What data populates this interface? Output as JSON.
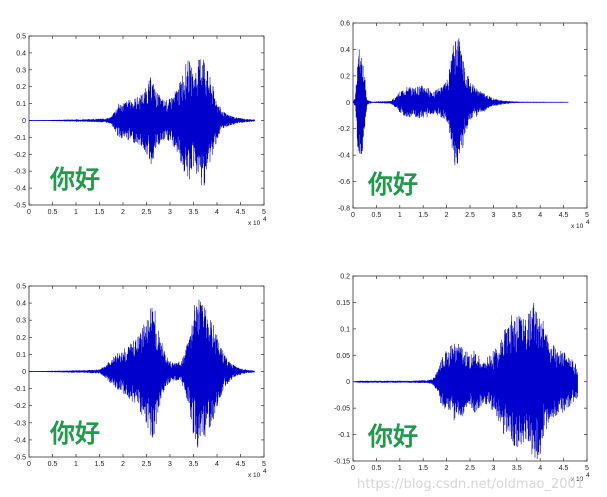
{
  "chart_data": [
    {
      "type": "line",
      "series": [
        {
          "color": "#0000cc",
          "envelope": [
            [
              0,
              0
            ],
            [
              2000,
              0.002
            ],
            [
              4000,
              0.003
            ],
            [
              6000,
              0.004
            ],
            [
              8000,
              0.006
            ],
            [
              10000,
              0.007
            ],
            [
              12000,
              0.008
            ],
            [
              14000,
              0.01
            ],
            [
              16000,
              0.012
            ],
            [
              17500,
              0.02
            ],
            [
              18000,
              0.05
            ],
            [
              19000,
              0.1
            ],
            [
              20000,
              0.11
            ],
            [
              21000,
              0.12
            ],
            [
              22000,
              0.13
            ],
            [
              23000,
              0.14
            ],
            [
              24000,
              0.16
            ],
            [
              25000,
              0.2
            ],
            [
              26000,
              0.27
            ],
            [
              27000,
              0.18
            ],
            [
              28000,
              0.14
            ],
            [
              29000,
              0.12
            ],
            [
              30000,
              0.13
            ],
            [
              31000,
              0.17
            ],
            [
              32000,
              0.22
            ],
            [
              33000,
              0.32
            ],
            [
              34000,
              0.37
            ],
            [
              35000,
              0.28
            ],
            [
              36000,
              0.35
            ],
            [
              36500,
              0.4
            ],
            [
              37000,
              0.42
            ],
            [
              37500,
              0.36
            ],
            [
              38000,
              0.3
            ],
            [
              39000,
              0.22
            ],
            [
              40000,
              0.12
            ],
            [
              41000,
              0.06
            ],
            [
              42000,
              0.04
            ],
            [
              43000,
              0.03
            ],
            [
              44000,
              0.02
            ],
            [
              45000,
              0.015
            ],
            [
              46000,
              0.01
            ],
            [
              47000,
              0.008
            ],
            [
              48000,
              0.006
            ]
          ]
        }
      ],
      "xlim": [
        0,
        50000
      ],
      "ylim": [
        -0.5,
        0.5
      ],
      "xticks": [
        "0",
        "0.5",
        "1",
        "1.5",
        "2",
        "2.5",
        "3",
        "3.5",
        "4",
        "4.5",
        "5"
      ],
      "yticks": [
        "0.5",
        "0.4",
        "0.3",
        "0.2",
        "0.1",
        "0",
        "-0.1",
        "-0.2",
        "-0.3",
        "-0.4",
        "-0.5"
      ],
      "x_exponent": "x 10",
      "x_exponent_power": "4",
      "annotation": "你好"
    },
    {
      "type": "line",
      "series": [
        {
          "color": "#0000cc",
          "envelope": [
            [
              0,
              0
            ],
            [
              500,
              0.04
            ],
            [
              1000,
              0.4
            ],
            [
              1500,
              0.42
            ],
            [
              2000,
              0.38
            ],
            [
              2500,
              0.2
            ],
            [
              3000,
              0.02
            ],
            [
              4000,
              0.005
            ],
            [
              6000,
              0.008
            ],
            [
              8000,
              0.01
            ],
            [
              9000,
              0.04
            ],
            [
              10000,
              0.08
            ],
            [
              11000,
              0.11
            ],
            [
              12000,
              0.12
            ],
            [
              13000,
              0.11
            ],
            [
              14000,
              0.12
            ],
            [
              15000,
              0.13
            ],
            [
              16000,
              0.11
            ],
            [
              17000,
              0.09
            ],
            [
              18000,
              0.1
            ],
            [
              19000,
              0.12
            ],
            [
              20000,
              0.16
            ],
            [
              21000,
              0.33
            ],
            [
              21500,
              0.45
            ],
            [
              22000,
              0.52
            ],
            [
              22500,
              0.52
            ],
            [
              23000,
              0.46
            ],
            [
              23500,
              0.35
            ],
            [
              24000,
              0.25
            ],
            [
              25000,
              0.17
            ],
            [
              26000,
              0.12
            ],
            [
              27000,
              0.09
            ],
            [
              28000,
              0.07
            ],
            [
              29000,
              0.05
            ],
            [
              30000,
              0.03
            ],
            [
              32000,
              0.015
            ],
            [
              34000,
              0.008
            ],
            [
              36000,
              0.004
            ],
            [
              40000,
              0.003
            ],
            [
              46000,
              0.002
            ]
          ]
        }
      ],
      "xlim": [
        0,
        50000
      ],
      "ylim": [
        -0.8,
        0.6
      ],
      "xticks": [
        "0",
        "0.5",
        "1",
        "1.5",
        "2",
        "2.5",
        "3",
        "3.5",
        "4",
        "4.5",
        "5"
      ],
      "yticks": [
        "0.6",
        "0.4",
        "0.2",
        "0",
        "-0.2",
        "-0.4",
        "-0.6",
        "-0.8"
      ],
      "x_exponent": "x 10",
      "x_exponent_power": "4",
      "annotation": "你好"
    },
    {
      "type": "line",
      "series": [
        {
          "color": "#0000cc",
          "envelope": [
            [
              0,
              0
            ],
            [
              4000,
              0.004
            ],
            [
              8000,
              0.006
            ],
            [
              12000,
              0.008
            ],
            [
              15000,
              0.012
            ],
            [
              16000,
              0.03
            ],
            [
              17000,
              0.06
            ],
            [
              18000,
              0.09
            ],
            [
              19000,
              0.11
            ],
            [
              20000,
              0.13
            ],
            [
              21000,
              0.15
            ],
            [
              22000,
              0.18
            ],
            [
              23000,
              0.21
            ],
            [
              24000,
              0.26
            ],
            [
              25000,
              0.32
            ],
            [
              26000,
              0.38
            ],
            [
              26500,
              0.4
            ],
            [
              27000,
              0.33
            ],
            [
              28000,
              0.2
            ],
            [
              29000,
              0.1
            ],
            [
              30000,
              0.06
            ],
            [
              31000,
              0.05
            ],
            [
              32000,
              0.06
            ],
            [
              33000,
              0.1
            ],
            [
              34000,
              0.2
            ],
            [
              35000,
              0.38
            ],
            [
              36000,
              0.47
            ],
            [
              36500,
              0.46
            ],
            [
              37000,
              0.4
            ],
            [
              38000,
              0.36
            ],
            [
              39000,
              0.3
            ],
            [
              40000,
              0.22
            ],
            [
              41000,
              0.13
            ],
            [
              42000,
              0.08
            ],
            [
              43000,
              0.05
            ],
            [
              44000,
              0.03
            ],
            [
              45000,
              0.02
            ],
            [
              46000,
              0.012
            ],
            [
              47000,
              0.008
            ],
            [
              48000,
              0.005
            ]
          ]
        }
      ],
      "xlim": [
        0,
        50000
      ],
      "ylim": [
        -0.5,
        0.5
      ],
      "xticks": [
        "0",
        "0.5",
        "1",
        "1.5",
        "2",
        "2.5",
        "3",
        "3.5",
        "4",
        "4.5",
        "5"
      ],
      "yticks": [
        "0.5",
        "0.4",
        "0.3",
        "0.2",
        "0.1",
        "0",
        "-0.1",
        "-0.2",
        "-0.3",
        "-0.4",
        "-0.5"
      ],
      "x_exponent": "x 10",
      "x_exponent_power": "4",
      "annotation": "你好"
    },
    {
      "type": "line",
      "series": [
        {
          "color": "#0000cc",
          "envelope": [
            [
              0,
              0
            ],
            [
              1000,
              0.002
            ],
            [
              4000,
              0.002
            ],
            [
              8000,
              0.002
            ],
            [
              12000,
              0.002
            ],
            [
              16000,
              0.003
            ],
            [
              17000,
              0.005
            ],
            [
              18000,
              0.02
            ],
            [
              19000,
              0.05
            ],
            [
              20000,
              0.06
            ],
            [
              21000,
              0.07
            ],
            [
              22000,
              0.075
            ],
            [
              23000,
              0.07
            ],
            [
              24000,
              0.06
            ],
            [
              25000,
              0.05
            ],
            [
              26000,
              0.06
            ],
            [
              27000,
              0.05
            ],
            [
              28000,
              0.04
            ],
            [
              29000,
              0.05
            ],
            [
              30000,
              0.06
            ],
            [
              31000,
              0.07
            ],
            [
              32000,
              0.1
            ],
            [
              33000,
              0.11
            ],
            [
              34000,
              0.13
            ],
            [
              35000,
              0.13
            ],
            [
              36000,
              0.12
            ],
            [
              37000,
              0.12
            ],
            [
              38000,
              0.14
            ],
            [
              39000,
              0.16
            ],
            [
              40000,
              0.14
            ],
            [
              41000,
              0.1
            ],
            [
              42000,
              0.08
            ],
            [
              43000,
              0.07
            ],
            [
              44000,
              0.06
            ],
            [
              45000,
              0.06
            ],
            [
              46000,
              0.05
            ],
            [
              47000,
              0.04
            ],
            [
              48000,
              0.03
            ]
          ]
        }
      ],
      "xlim": [
        0,
        50000
      ],
      "ylim": [
        -0.15,
        0.2
      ],
      "xticks": [
        "0",
        "0.5",
        "1",
        "1.5",
        "2",
        "2.5",
        "3",
        "3.5",
        "4",
        "4.5",
        "5"
      ],
      "yticks": [
        "0.2",
        "0.15",
        "0.1",
        "0.05",
        "0",
        "-0.05",
        "-0.1",
        "-0.15"
      ],
      "x_exponent": "x 10",
      "x_exponent_power": "4",
      "annotation": "你好"
    }
  ],
  "watermark": "https://blog.csdn.net/oldmao_2001"
}
